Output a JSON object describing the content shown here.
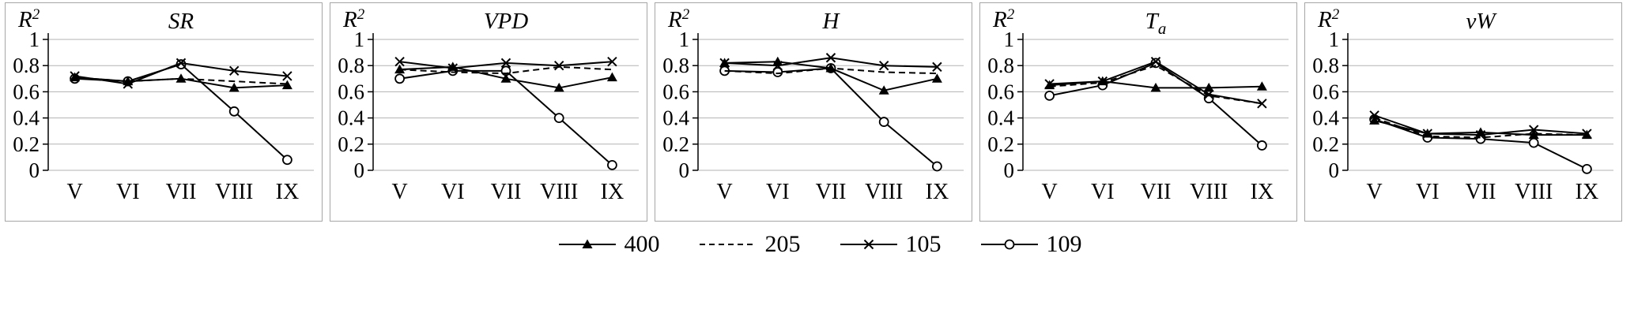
{
  "legend": [
    {
      "label": "400",
      "marker": "triangle-filled",
      "line": "solid"
    },
    {
      "label": "205",
      "marker": "none",
      "line": "dashed"
    },
    {
      "label": "105",
      "marker": "x",
      "line": "solid"
    },
    {
      "label": "109",
      "marker": "circle-open",
      "line": "solid"
    }
  ],
  "chart_data": [
    {
      "type": "line",
      "title": "SR",
      "title_sub": "",
      "ylabel": "R",
      "ylabel_sup": "2",
      "categories": [
        "V",
        "VI",
        "VII",
        "VIII",
        "IX"
      ],
      "ylim": [
        0,
        1
      ],
      "yticks": [
        1,
        0.8,
        0.6,
        0.4,
        0.2,
        0
      ],
      "grid": true,
      "legend_position": "bottom-shared",
      "series": [
        {
          "name": "400",
          "values": [
            0.71,
            0.68,
            0.7,
            0.63,
            0.65
          ]
        },
        {
          "name": "205",
          "values": [
            0.71,
            0.68,
            0.7,
            0.68,
            0.66
          ]
        },
        {
          "name": "105",
          "values": [
            0.72,
            0.66,
            0.82,
            0.76,
            0.72
          ]
        },
        {
          "name": "109",
          "values": [
            0.7,
            0.68,
            0.81,
            0.45,
            0.08
          ]
        }
      ]
    },
    {
      "type": "line",
      "title": "VPD",
      "title_sub": "",
      "ylabel": "R",
      "ylabel_sup": "2",
      "categories": [
        "V",
        "VI",
        "VII",
        "VIII",
        "IX"
      ],
      "ylim": [
        0,
        1
      ],
      "yticks": [
        1,
        0.8,
        0.6,
        0.4,
        0.2,
        0
      ],
      "grid": true,
      "legend_position": "bottom-shared",
      "series": [
        {
          "name": "400",
          "values": [
            0.77,
            0.79,
            0.7,
            0.63,
            0.71
          ]
        },
        {
          "name": "205",
          "values": [
            0.77,
            0.75,
            0.74,
            0.79,
            0.77
          ]
        },
        {
          "name": "105",
          "values": [
            0.83,
            0.78,
            0.82,
            0.8,
            0.83
          ]
        },
        {
          "name": "109",
          "values": [
            0.7,
            0.76,
            0.76,
            0.4,
            0.04
          ]
        }
      ]
    },
    {
      "type": "line",
      "title": "H",
      "title_sub": "",
      "ylabel": "R",
      "ylabel_sup": "2",
      "categories": [
        "V",
        "VI",
        "VII",
        "VIII",
        "IX"
      ],
      "ylim": [
        0,
        1
      ],
      "yticks": [
        1,
        0.8,
        0.6,
        0.4,
        0.2,
        0
      ],
      "grid": true,
      "legend_position": "bottom-shared",
      "series": [
        {
          "name": "400",
          "values": [
            0.82,
            0.83,
            0.78,
            0.61,
            0.7
          ]
        },
        {
          "name": "205",
          "values": [
            0.76,
            0.74,
            0.78,
            0.75,
            0.74
          ]
        },
        {
          "name": "105",
          "values": [
            0.82,
            0.8,
            0.86,
            0.8,
            0.79
          ]
        },
        {
          "name": "109",
          "values": [
            0.76,
            0.75,
            0.78,
            0.37,
            0.03
          ]
        }
      ]
    },
    {
      "type": "line",
      "title": "T",
      "title_sub": "a",
      "ylabel": "R",
      "ylabel_sup": "2",
      "categories": [
        "V",
        "VI",
        "VII",
        "VIII",
        "IX"
      ],
      "ylim": [
        0,
        1
      ],
      "yticks": [
        1,
        0.8,
        0.6,
        0.4,
        0.2,
        0
      ],
      "grid": true,
      "legend_position": "bottom-shared",
      "series": [
        {
          "name": "400",
          "values": [
            0.65,
            0.68,
            0.63,
            0.63,
            0.64
          ]
        },
        {
          "name": "205",
          "values": [
            0.64,
            0.67,
            0.8,
            0.57,
            0.51
          ]
        },
        {
          "name": "105",
          "values": [
            0.66,
            0.68,
            0.83,
            0.58,
            0.51
          ]
        },
        {
          "name": "109",
          "values": [
            0.57,
            0.65,
            0.82,
            0.55,
            0.19
          ]
        }
      ]
    },
    {
      "type": "line",
      "title": "vW",
      "title_sub": "",
      "ylabel": "R",
      "ylabel_sup": "2",
      "categories": [
        "V",
        "VI",
        "VII",
        "VIII",
        "IX"
      ],
      "ylim": [
        0,
        1
      ],
      "yticks": [
        1,
        0.8,
        0.6,
        0.4,
        0.2,
        0
      ],
      "grid": true,
      "legend_position": "bottom-shared",
      "series": [
        {
          "name": "400",
          "values": [
            0.38,
            0.28,
            0.29,
            0.27,
            0.27
          ]
        },
        {
          "name": "205",
          "values": [
            0.4,
            0.26,
            0.25,
            0.28,
            0.27
          ]
        },
        {
          "name": "105",
          "values": [
            0.42,
            0.28,
            0.27,
            0.31,
            0.28
          ]
        },
        {
          "name": "109",
          "values": [
            0.39,
            0.25,
            0.24,
            0.21,
            0.01
          ]
        }
      ]
    }
  ]
}
